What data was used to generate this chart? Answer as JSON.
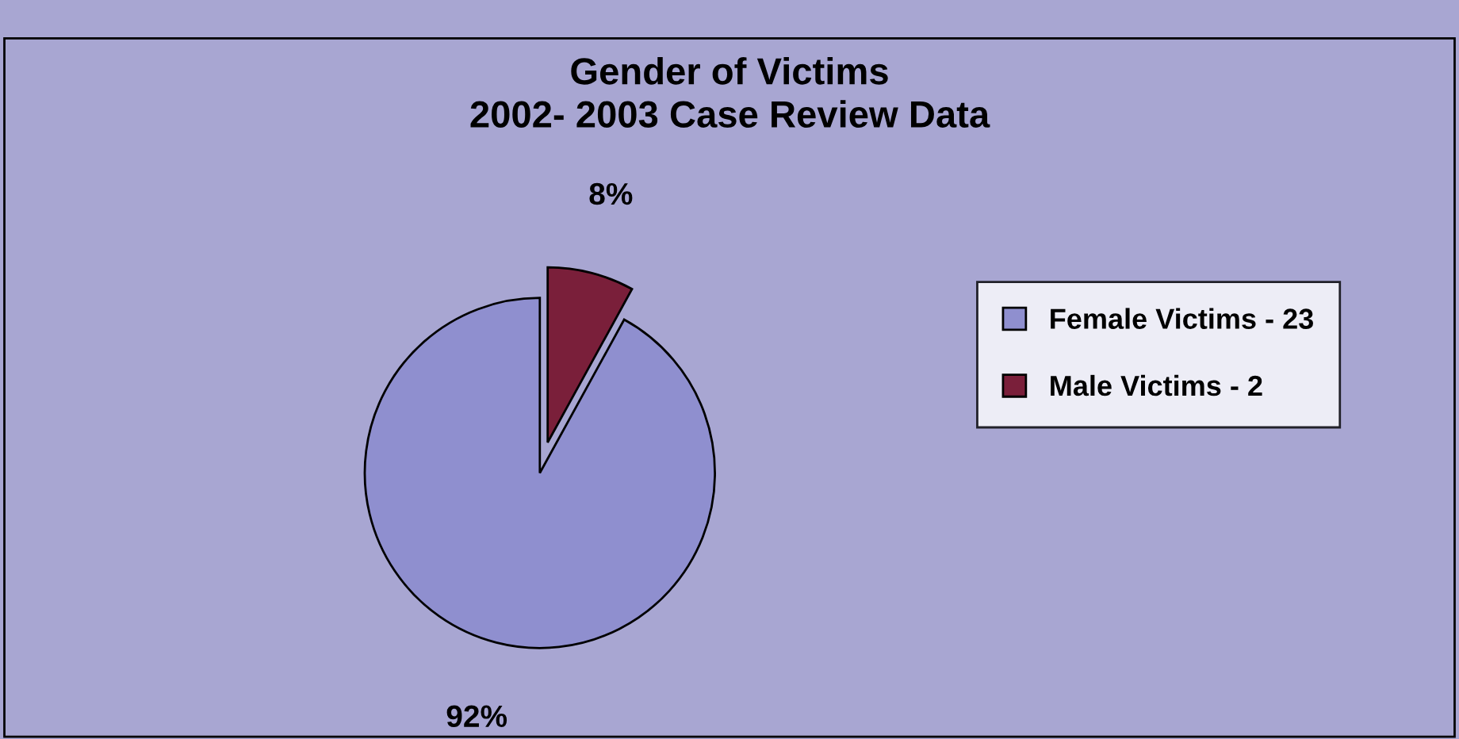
{
  "chart_data": {
    "type": "pie",
    "title": "Gender of Victims\n2002- 2003 Case Review Data",
    "categories": [
      "Female Victims - 23",
      "Male Victims - 2"
    ],
    "values": [
      92,
      8
    ],
    "colors": [
      "#8f8fcf",
      "#7a1f3a"
    ],
    "value_labels": [
      "92%",
      "8%"
    ],
    "legend": "right"
  }
}
